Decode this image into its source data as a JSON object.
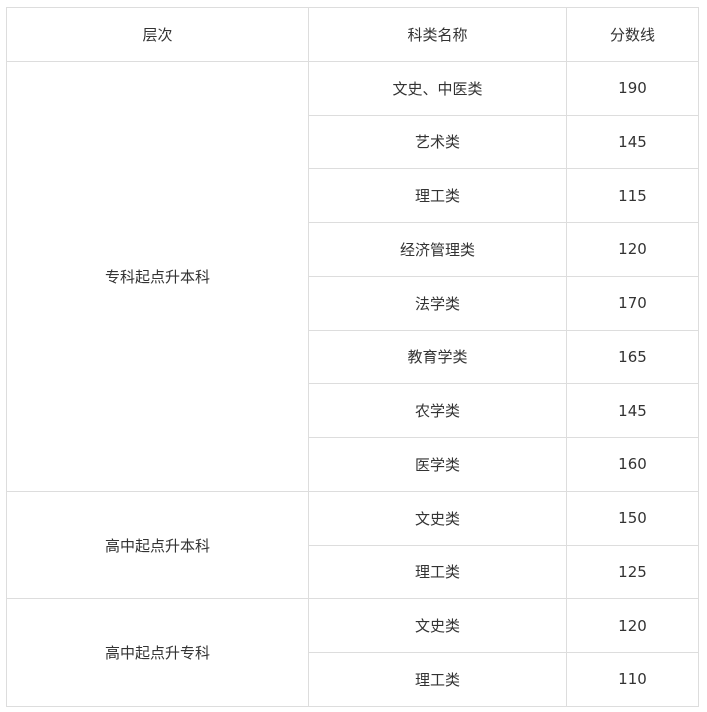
{
  "table": {
    "headers": [
      "层次",
      "科类名称",
      "分数线"
    ],
    "groups": [
      {
        "level": "专科起点升本科",
        "rows": [
          {
            "category": "文史、中医类",
            "score": "190"
          },
          {
            "category": "艺术类",
            "score": "145"
          },
          {
            "category": "理工类",
            "score": "115"
          },
          {
            "category": "经济管理类",
            "score": "120"
          },
          {
            "category": "法学类",
            "score": "170"
          },
          {
            "category": "教育学类",
            "score": "165"
          },
          {
            "category": "农学类",
            "score": "145"
          },
          {
            "category": "医学类",
            "score": "160"
          }
        ]
      },
      {
        "level": "高中起点升本科",
        "rows": [
          {
            "category": "文史类",
            "score": "150"
          },
          {
            "category": "理工类",
            "score": "125"
          }
        ]
      },
      {
        "level": "高中起点升专科",
        "rows": [
          {
            "category": "文史类",
            "score": "120"
          },
          {
            "category": "理工类",
            "score": "110"
          }
        ]
      }
    ]
  }
}
